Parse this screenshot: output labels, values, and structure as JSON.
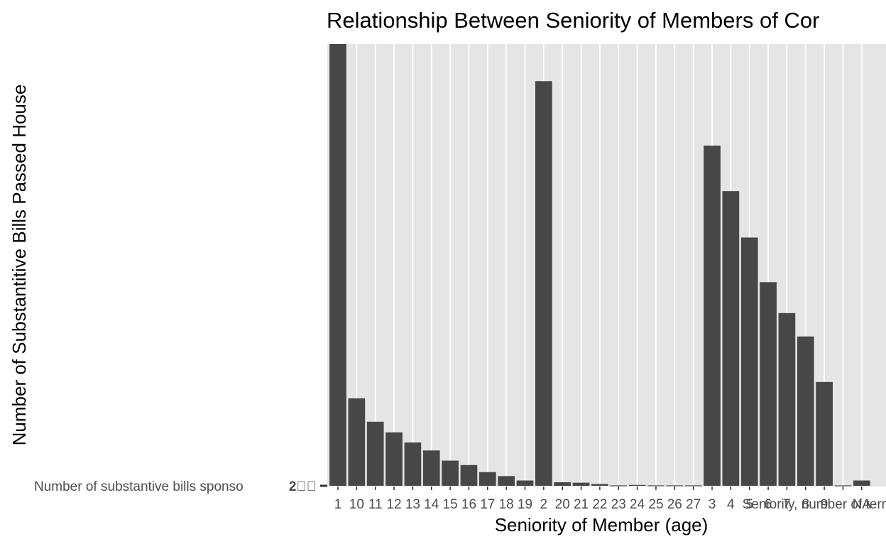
{
  "chart_data": {
    "type": "bar",
    "title": "Relationship Between Seniority of Members of Cor",
    "xlabel": "Seniority of Member (age)",
    "ylabel": "Number of Substantitive Bills Passed House",
    "y_tick_label": "Number of substantive bills sponso",
    "y_tick_overlap_label": "2\u0000\u0000",
    "ylim": [
      0,
      1000
    ],
    "grid": true,
    "legend": "none",
    "background": "#e5e5e5",
    "bar_color": "#474747",
    "categories": [
      "1",
      "10",
      "11",
      "12",
      "13",
      "14",
      "15",
      "16",
      "17",
      "18",
      "19",
      "2",
      "20",
      "21",
      "22",
      "23",
      "24",
      "25",
      "26",
      "27",
      "3",
      "4",
      "5",
      "6",
      "7",
      "8",
      "9",
      "Seniority, number of terms served",
      "NA"
    ],
    "tick_labels": [
      "1",
      "10",
      "11",
      "12",
      "13",
      "14",
      "15",
      "16",
      "17",
      "18",
      "19",
      "2",
      "20",
      "21",
      "22",
      "23",
      "24",
      "25",
      "26",
      "27",
      "3",
      "4",
      "5",
      "6",
      "7",
      "8",
      "9",
      "Seniority, number of terms served",
      "NA"
    ],
    "values": [
      1000,
      198,
      145,
      121,
      98,
      80,
      57,
      47,
      31,
      22,
      12,
      916,
      8,
      7,
      4,
      1,
      2,
      1,
      1,
      1,
      770,
      667,
      562,
      461,
      391,
      338,
      235,
      1,
      12
    ]
  }
}
